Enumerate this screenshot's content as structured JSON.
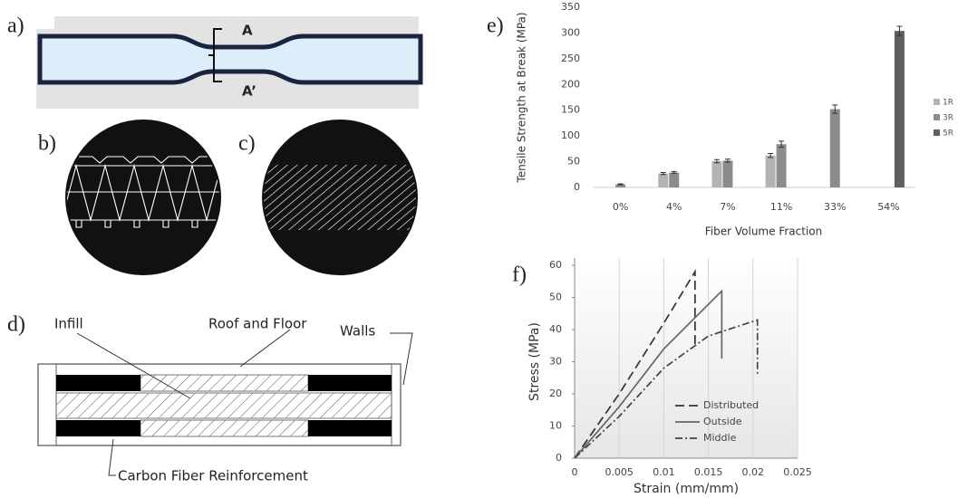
{
  "panel_labels": {
    "a": "a)",
    "b": "b)",
    "c": "c)",
    "d": "d)",
    "e": "e)",
    "f": "f)"
  },
  "diagram_a": {
    "section_top": "A",
    "section_bottom": "A’"
  },
  "diagram_d": {
    "infill": "Infill",
    "roof_floor": "Roof and Floor",
    "walls": "Walls",
    "reinforcement": "Carbon Fiber Reinforcement"
  },
  "chart_data": [
    {
      "type": "bar",
      "y_label": "Tensile Strength at Break (MPa)",
      "x_label": "Fiber Volume Fraction",
      "categories": [
        "0%",
        "4%",
        "7%",
        "11%",
        "33%",
        "54%"
      ],
      "series": [
        {
          "name": "1R",
          "color": "#b3b3b3",
          "values": [
            null,
            27,
            51,
            62,
            null,
            null
          ],
          "errors": [
            null,
            2,
            3,
            4,
            null,
            null
          ]
        },
        {
          "name": "3R",
          "color": "#8c8c8c",
          "values": [
            6,
            29,
            52,
            84,
            152,
            null
          ],
          "errors": [
            1,
            2,
            3,
            6,
            8,
            null
          ]
        },
        {
          "name": "5R",
          "color": "#5f5f5f",
          "values": [
            null,
            null,
            null,
            null,
            null,
            304
          ],
          "errors": [
            null,
            null,
            null,
            null,
            null,
            9
          ]
        }
      ],
      "ylim": [
        0,
        350
      ],
      "yticks": [
        0,
        50,
        100,
        150,
        200,
        250,
        300,
        350
      ],
      "grid": false,
      "legend": "right"
    },
    {
      "type": "line",
      "y_label": "Stress (MPa)",
      "x_label": "Strain (mm/mm)",
      "series": [
        {
          "name": "Distributed",
          "color": "#333333",
          "dash": "dashed",
          "x": [
            0,
            0.005,
            0.01,
            0.0135,
            0.0135
          ],
          "values": [
            0,
            20,
            42,
            58,
            34
          ]
        },
        {
          "name": "Outside",
          "color": "#666666",
          "dash": "solid",
          "x": [
            0,
            0.005,
            0.01,
            0.0165,
            0.0165
          ],
          "values": [
            0,
            16,
            34,
            52,
            31
          ]
        },
        {
          "name": "Middle",
          "color": "#444444",
          "dash": "dashdot",
          "x": [
            0,
            0.005,
            0.01,
            0.015,
            0.0205,
            0.0205
          ],
          "values": [
            0,
            13,
            28,
            38,
            43,
            26
          ]
        }
      ],
      "xlim": [
        0,
        0.025
      ],
      "xticks": [
        0,
        0.005,
        0.01,
        0.015,
        0.02,
        0.025
      ],
      "ylim": [
        0,
        60
      ],
      "yticks": [
        0,
        10,
        20,
        30,
        40,
        50,
        60
      ],
      "grid": "x",
      "legend": "lower right"
    }
  ]
}
